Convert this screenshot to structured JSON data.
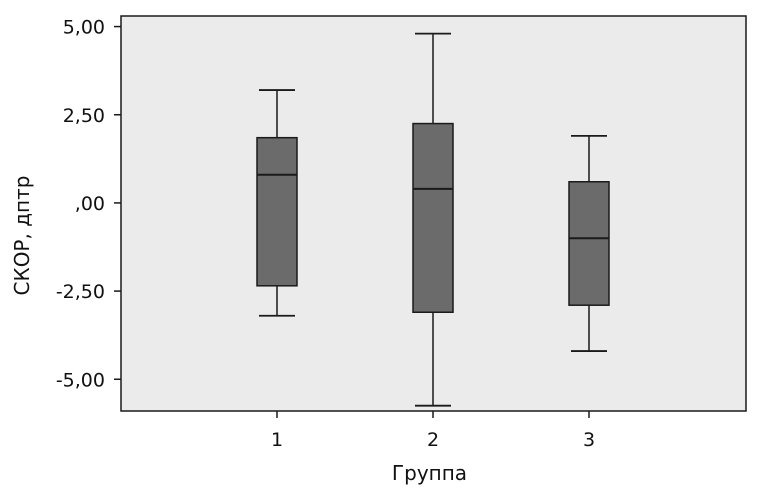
{
  "chart_data": {
    "type": "box",
    "xlabel": "Группа",
    "ylabel": "СКОР, дптр",
    "ylim": [
      -5.9,
      5.3
    ],
    "yticks": [
      5.0,
      2.5,
      0.0,
      -2.5,
      -5.0
    ],
    "ytick_labels": [
      "5,00",
      "2,50",
      ",00",
      "-2,50",
      "-5,00"
    ],
    "categories": [
      "1",
      "2",
      "3"
    ],
    "boxes": [
      {
        "category": "1",
        "whisker_low": -3.2,
        "q1": -2.35,
        "median": 0.8,
        "q3": 1.85,
        "whisker_high": 3.2
      },
      {
        "category": "2",
        "whisker_low": -5.75,
        "q1": -3.1,
        "median": 0.4,
        "q3": 2.25,
        "whisker_high": 4.8
      },
      {
        "category": "3",
        "whisker_low": -4.2,
        "q1": -2.9,
        "median": -1.0,
        "q3": 0.6,
        "whisker_high": 1.9
      }
    ],
    "grid": false,
    "colors": {
      "plot_background": "#ebebeb",
      "box_fill": "#6b6b6b",
      "stroke": "#1a1a1a"
    }
  }
}
